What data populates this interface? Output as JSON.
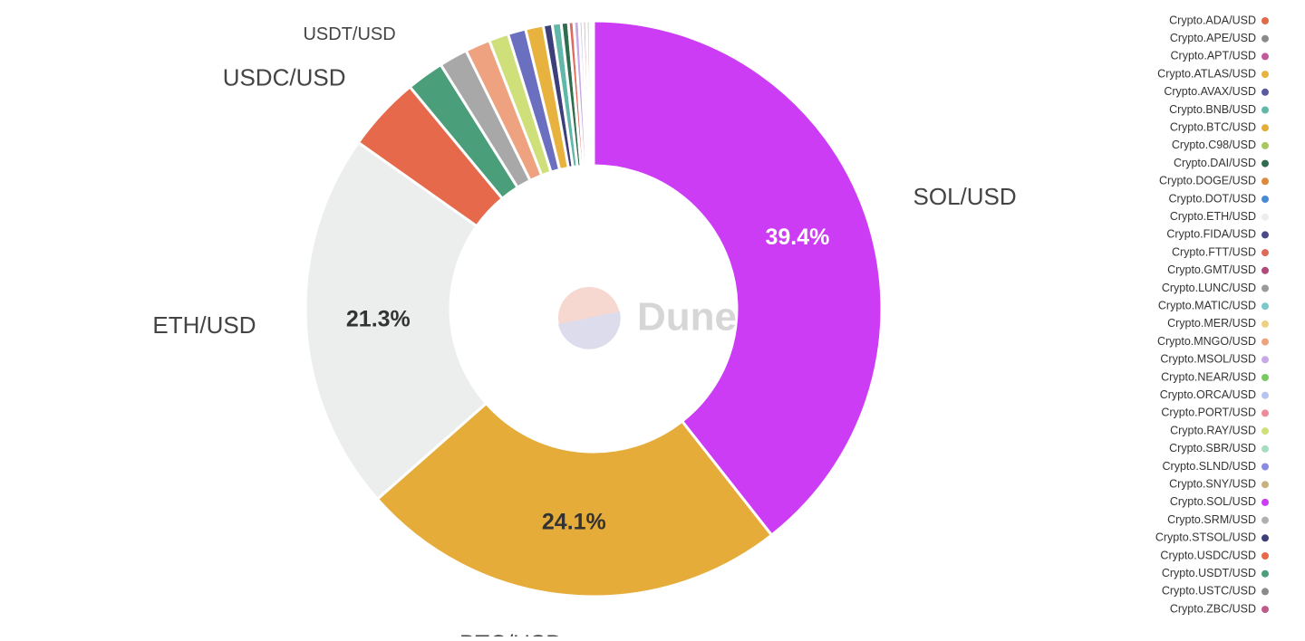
{
  "chart_data": {
    "type": "pie",
    "donut": true,
    "watermark": "Dune",
    "categories": [
      "SOL/USD",
      "BTC/USD",
      "ETH/USD",
      "USDC/USD",
      "USDT/USD",
      null,
      null,
      null,
      null,
      null,
      null,
      null,
      null,
      null,
      null,
      null,
      null,
      null,
      null,
      null
    ],
    "values": [
      39.4,
      24.1,
      21.3,
      4.2,
      2.1,
      1.6,
      1.4,
      1.1,
      1.0,
      1.0,
      0.5,
      0.5,
      0.4,
      0.3,
      0.3,
      0.2,
      0.2,
      0.2,
      0.1,
      0.1
    ],
    "value_labels": [
      "39.4%",
      "24.1%",
      "21.3%",
      null,
      null,
      null,
      null,
      null,
      null,
      null,
      null,
      null,
      null,
      null,
      null,
      null,
      null,
      null,
      null,
      null
    ],
    "colors": [
      "#cc3cf5",
      "#e6ac3a",
      "#eceeee",
      "#e5694a",
      "#4a9e7a",
      "#a8a8a8",
      "#eea27f",
      "#cfe07a",
      "#6a6fc0",
      "#e8b23f",
      "#3c3f7a",
      "#62b8a8",
      "#2e6e4e",
      "#e06a5a",
      "#c9a8e8",
      "#b6c4ef",
      "#f0a0a8",
      "#a8dcc0",
      "#7ac8c8",
      "#c05a8a"
    ],
    "legend": [
      {
        "name": "Crypto.ADA/USD",
        "color": "#e06a4a"
      },
      {
        "name": "Crypto.APE/USD",
        "color": "#8a8a8a"
      },
      {
        "name": "Crypto.APT/USD",
        "color": "#c05a9a"
      },
      {
        "name": "Crypto.ATLAS/USD",
        "color": "#e8b23f"
      },
      {
        "name": "Crypto.AVAX/USD",
        "color": "#5a5aa0"
      },
      {
        "name": "Crypto.BNB/USD",
        "color": "#62b8a8"
      },
      {
        "name": "Crypto.BTC/USD",
        "color": "#e6ac3a"
      },
      {
        "name": "Crypto.C98/USD",
        "color": "#a8c860"
      },
      {
        "name": "Crypto.DAI/USD",
        "color": "#2e6e4e"
      },
      {
        "name": "Crypto.DOGE/USD",
        "color": "#e0883a"
      },
      {
        "name": "Crypto.DOT/USD",
        "color": "#4a8ad0"
      },
      {
        "name": "Crypto.ETH/USD",
        "color": "#eceeee"
      },
      {
        "name": "Crypto.FIDA/USD",
        "color": "#4a4a8a"
      },
      {
        "name": "Crypto.FTT/USD",
        "color": "#e06a5a"
      },
      {
        "name": "Crypto.GMT/USD",
        "color": "#b04a7a"
      },
      {
        "name": "Crypto.LUNC/USD",
        "color": "#9a9a9a"
      },
      {
        "name": "Crypto.MATIC/USD",
        "color": "#7ac8c8"
      },
      {
        "name": "Crypto.MER/USD",
        "color": "#f0d080"
      },
      {
        "name": "Crypto.MNGO/USD",
        "color": "#eea27f"
      },
      {
        "name": "Crypto.MSOL/USD",
        "color": "#c9a8e8"
      },
      {
        "name": "Crypto.NEAR/USD",
        "color": "#7ac860"
      },
      {
        "name": "Crypto.ORCA/USD",
        "color": "#b6c4ef"
      },
      {
        "name": "Crypto.PORT/USD",
        "color": "#f08a98"
      },
      {
        "name": "Crypto.RAY/USD",
        "color": "#cfe07a"
      },
      {
        "name": "Crypto.SBR/USD",
        "color": "#a8dcc0"
      },
      {
        "name": "Crypto.SLND/USD",
        "color": "#8a8ae0"
      },
      {
        "name": "Crypto.SNY/USD",
        "color": "#c8b080"
      },
      {
        "name": "Crypto.SOL/USD",
        "color": "#cc3cf5"
      },
      {
        "name": "Crypto.SRM/USD",
        "color": "#b0b0b0"
      },
      {
        "name": "Crypto.STSOL/USD",
        "color": "#3c3f7a"
      },
      {
        "name": "Crypto.USDC/USD",
        "color": "#e5694a"
      },
      {
        "name": "Crypto.USDT/USD",
        "color": "#4a9e7a"
      },
      {
        "name": "Crypto.USTC/USD",
        "color": "#8a8a8a"
      },
      {
        "name": "Crypto.ZBC/USD",
        "color": "#c05a8a"
      }
    ]
  }
}
